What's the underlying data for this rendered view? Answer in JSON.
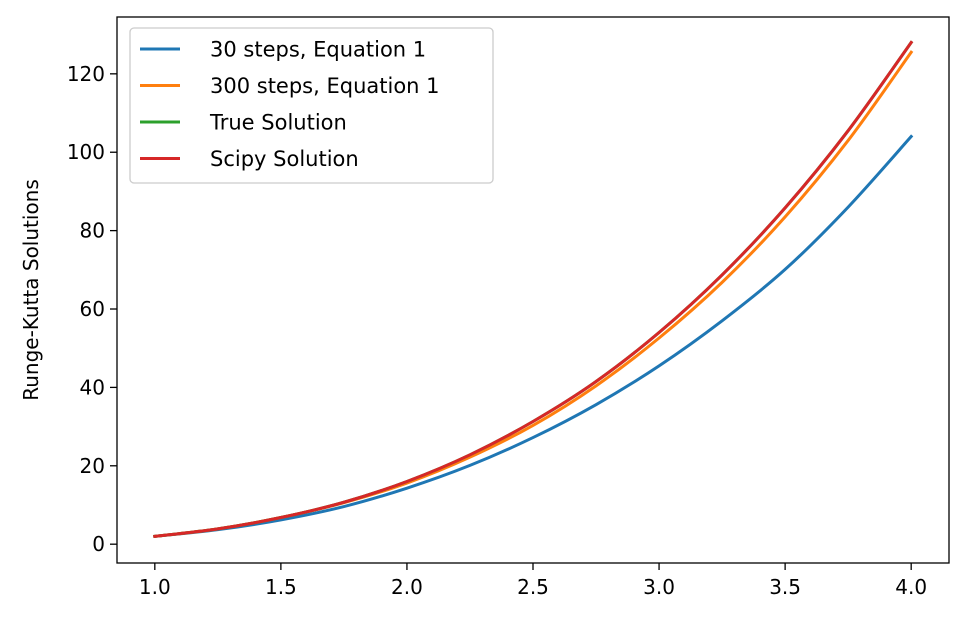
{
  "chart_data": {
    "type": "line",
    "title": "",
    "xlabel": "",
    "ylabel": "Runge-Kutta Solutions",
    "xlim": [
      0.85,
      4.15
    ],
    "ylim": [
      -4.8,
      134.5
    ],
    "grid": false,
    "legend_position": "top-left",
    "x_ticks": [
      "1.0",
      "1.5",
      "2.0",
      "2.5",
      "3.0",
      "3.5",
      "4.0"
    ],
    "y_ticks": [
      "0",
      "20",
      "40",
      "60",
      "80",
      "100",
      "120"
    ],
    "series": [
      {
        "name": "30 steps, Equation 1",
        "color": "#1f77b4",
        "x": [
          1.0,
          1.25,
          1.5,
          1.75,
          2.0,
          2.25,
          2.5,
          2.75,
          3.0,
          3.25,
          3.5,
          3.75,
          4.0
        ],
        "y": [
          2.0,
          3.7,
          6.2,
          9.6,
          14.3,
          20.1,
          27.2,
          35.6,
          45.5,
          57.0,
          70.1,
          86.0,
          104.0
        ]
      },
      {
        "name": "300 steps, Equation 1",
        "color": "#ff7f0e",
        "x": [
          1.0,
          1.25,
          1.5,
          1.75,
          2.0,
          2.25,
          2.5,
          2.75,
          3.0,
          3.25,
          3.5,
          3.75,
          4.0
        ],
        "y": [
          2.0,
          3.9,
          6.8,
          10.6,
          15.6,
          22.2,
          30.3,
          40.4,
          52.6,
          66.8,
          83.5,
          103.0,
          125.5
        ]
      },
      {
        "name": "True Solution",
        "color": "#2ca02c",
        "x": [
          1.0,
          1.25,
          1.5,
          1.75,
          2.0,
          2.25,
          2.5,
          2.75,
          3.0,
          3.25,
          3.5,
          3.75,
          4.0
        ],
        "y": [
          2.0,
          3.9,
          6.8,
          10.7,
          16.0,
          22.8,
          31.3,
          41.5,
          54.0,
          68.7,
          85.8,
          105.5,
          128.0
        ]
      },
      {
        "name": "Scipy Solution",
        "color": "#d62728",
        "x": [
          1.0,
          1.25,
          1.5,
          1.75,
          2.0,
          2.25,
          2.5,
          2.75,
          3.0,
          3.25,
          3.5,
          3.75,
          4.0
        ],
        "y": [
          2.0,
          3.9,
          6.8,
          10.7,
          16.0,
          22.8,
          31.3,
          41.5,
          54.0,
          68.7,
          85.8,
          105.5,
          128.0
        ]
      }
    ]
  }
}
